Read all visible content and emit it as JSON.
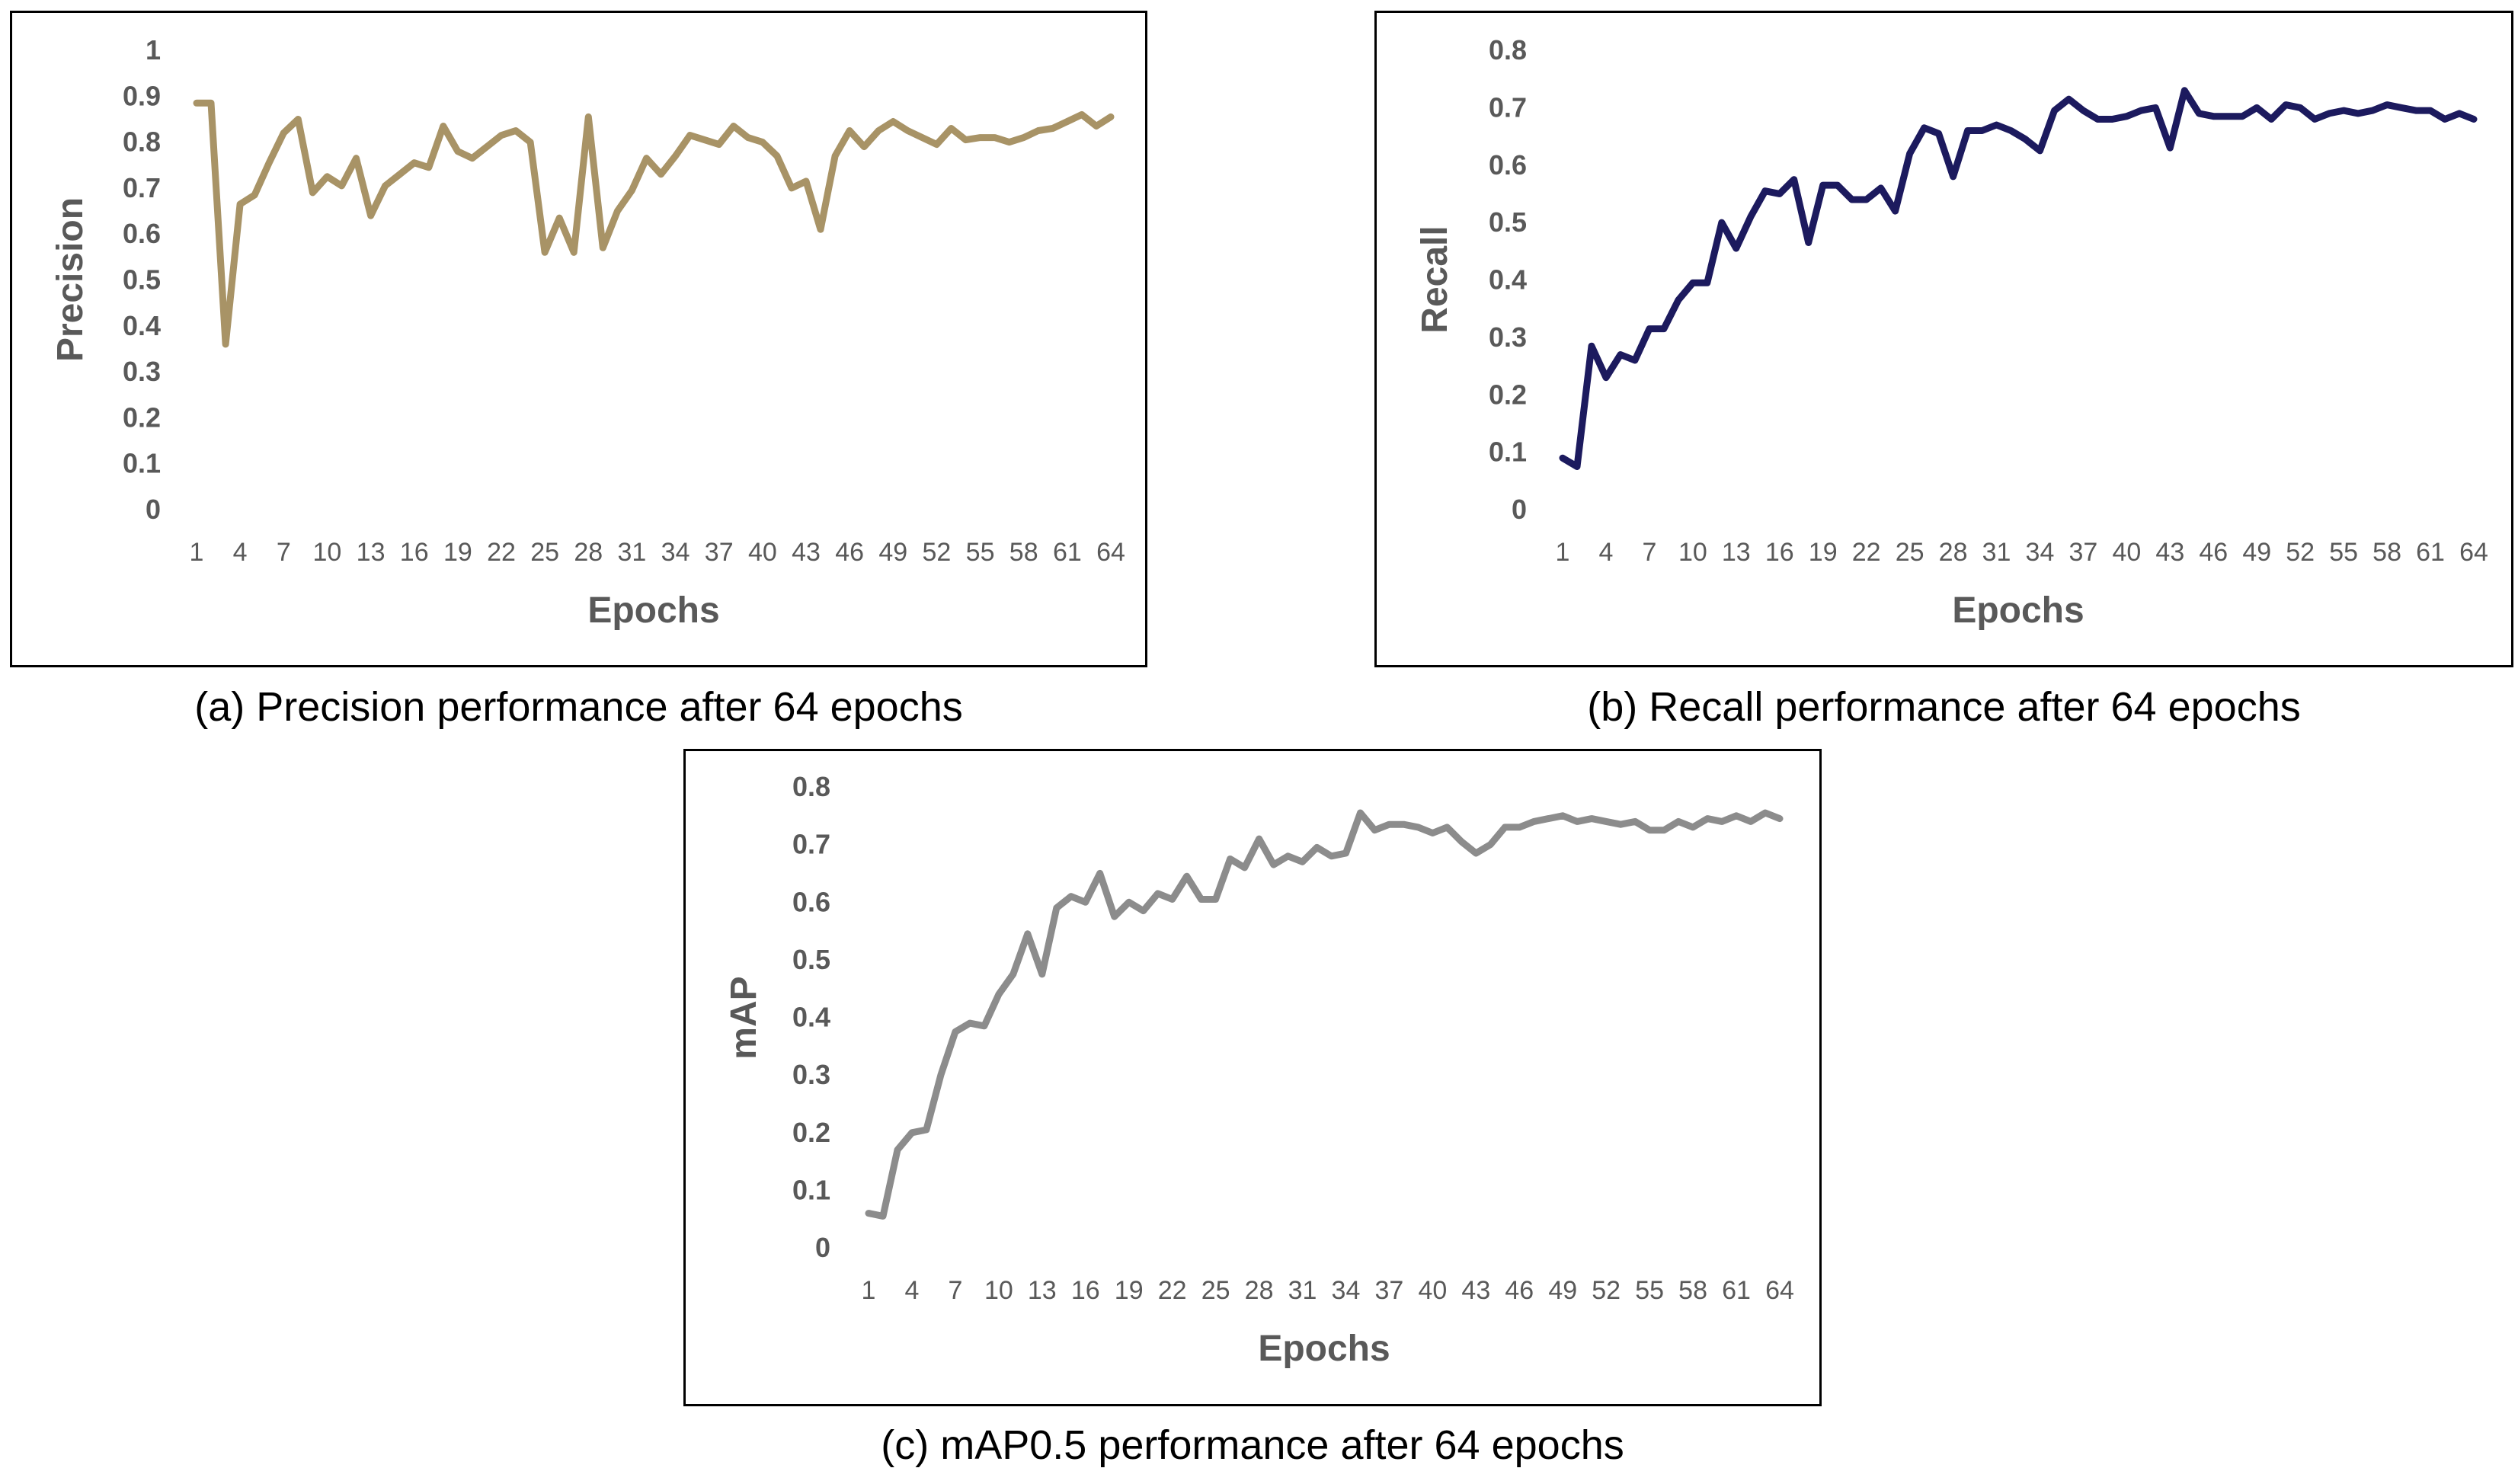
{
  "chart_data": [
    {
      "type": "line",
      "id": "precision",
      "title": "",
      "xlabel": "Epochs",
      "ylabel": "Precision",
      "ylim": [
        0,
        1
      ],
      "yticks": [
        "0",
        "0.1",
        "0.2",
        "0.3",
        "0.4",
        "0.5",
        "0.6",
        "0.7",
        "0.8",
        "0.9",
        "1"
      ],
      "xtick_labels": [
        "1",
        "4",
        "7",
        "10",
        "13",
        "16",
        "19",
        "22",
        "25",
        "28",
        "31",
        "34",
        "37",
        "40",
        "43",
        "46",
        "49",
        "52",
        "55",
        "58",
        "61",
        "64"
      ],
      "color": "#a89366",
      "caption": "(a) Precision performance after 64 epochs",
      "x": [
        1,
        2,
        3,
        4,
        5,
        6,
        7,
        8,
        9,
        10,
        11,
        12,
        13,
        14,
        15,
        16,
        17,
        18,
        19,
        20,
        21,
        22,
        23,
        24,
        25,
        26,
        27,
        28,
        29,
        30,
        31,
        32,
        33,
        34,
        35,
        36,
        37,
        38,
        39,
        40,
        41,
        42,
        43,
        44,
        45,
        46,
        47,
        48,
        49,
        50,
        51,
        52,
        53,
        54,
        55,
        56,
        57,
        58,
        59,
        60,
        61,
        62,
        63,
        64
      ],
      "values": [
        0.885,
        0.885,
        0.36,
        0.665,
        0.685,
        0.755,
        0.82,
        0.85,
        0.69,
        0.725,
        0.705,
        0.765,
        0.64,
        0.705,
        0.73,
        0.755,
        0.745,
        0.835,
        0.78,
        0.765,
        0.79,
        0.815,
        0.825,
        0.8,
        0.56,
        0.635,
        0.56,
        0.855,
        0.57,
        0.65,
        0.695,
        0.765,
        0.73,
        0.77,
        0.815,
        0.805,
        0.795,
        0.835,
        0.81,
        0.8,
        0.77,
        0.7,
        0.715,
        0.61,
        0.77,
        0.825,
        0.79,
        0.825,
        0.845,
        0.825,
        0.81,
        0.795,
        0.83,
        0.805,
        0.81,
        0.81,
        0.8,
        0.81,
        0.825,
        0.83,
        0.845,
        0.86,
        0.835,
        0.855
      ]
    },
    {
      "type": "line",
      "id": "recall",
      "title": "",
      "xlabel": "Epochs",
      "ylabel": "Recall",
      "ylim": [
        0,
        0.8
      ],
      "yticks": [
        "0",
        "0.1",
        "0.2",
        "0.3",
        "0.4",
        "0.5",
        "0.6",
        "0.7",
        "0.8"
      ],
      "xtick_labels": [
        "1",
        "4",
        "7",
        "10",
        "13",
        "16",
        "19",
        "22",
        "25",
        "28",
        "31",
        "34",
        "37",
        "40",
        "43",
        "46",
        "49",
        "52",
        "55",
        "58",
        "61",
        "64"
      ],
      "color": "#1c1a5e",
      "caption": "(b) Recall performance after 64 epochs",
      "x": [
        1,
        2,
        3,
        4,
        5,
        6,
        7,
        8,
        9,
        10,
        11,
        12,
        13,
        14,
        15,
        16,
        17,
        18,
        19,
        20,
        21,
        22,
        23,
        24,
        25,
        26,
        27,
        28,
        29,
        30,
        31,
        32,
        33,
        34,
        35,
        36,
        37,
        38,
        39,
        40,
        41,
        42,
        43,
        44,
        45,
        46,
        47,
        48,
        49,
        50,
        51,
        52,
        53,
        54,
        55,
        56,
        57,
        58,
        59,
        60,
        61,
        62,
        63,
        64
      ],
      "values": [
        0.09,
        0.075,
        0.285,
        0.23,
        0.27,
        0.26,
        0.315,
        0.315,
        0.365,
        0.395,
        0.395,
        0.5,
        0.455,
        0.51,
        0.555,
        0.55,
        0.575,
        0.465,
        0.565,
        0.565,
        0.54,
        0.54,
        0.56,
        0.52,
        0.62,
        0.665,
        0.655,
        0.58,
        0.66,
        0.66,
        0.67,
        0.66,
        0.645,
        0.625,
        0.695,
        0.715,
        0.695,
        0.68,
        0.68,
        0.685,
        0.695,
        0.7,
        0.63,
        0.73,
        0.69,
        0.685,
        0.685,
        0.685,
        0.7,
        0.68,
        0.705,
        0.7,
        0.68,
        0.69,
        0.695,
        0.69,
        0.695,
        0.705,
        0.7,
        0.695,
        0.695,
        0.68,
        0.69,
        0.68
      ]
    },
    {
      "type": "line",
      "id": "map",
      "title": "",
      "xlabel": "Epochs",
      "ylabel": "mAP",
      "ylim": [
        0,
        0.8
      ],
      "yticks": [
        "0",
        "0.1",
        "0.2",
        "0.3",
        "0.4",
        "0.5",
        "0.6",
        "0.7",
        "0.8"
      ],
      "xtick_labels": [
        "1",
        "4",
        "7",
        "10",
        "13",
        "16",
        "19",
        "22",
        "25",
        "28",
        "31",
        "34",
        "37",
        "40",
        "43",
        "46",
        "49",
        "52",
        "55",
        "58",
        "61",
        "64"
      ],
      "color": "#8c8c8c",
      "caption": "(c) mAP0.5 performance after 64 epochs",
      "x": [
        1,
        2,
        3,
        4,
        5,
        6,
        7,
        8,
        9,
        10,
        11,
        12,
        13,
        14,
        15,
        16,
        17,
        18,
        19,
        20,
        21,
        22,
        23,
        24,
        25,
        26,
        27,
        28,
        29,
        30,
        31,
        32,
        33,
        34,
        35,
        36,
        37,
        38,
        39,
        40,
        41,
        42,
        43,
        44,
        45,
        46,
        47,
        48,
        49,
        50,
        51,
        52,
        53,
        54,
        55,
        56,
        57,
        58,
        59,
        60,
        61,
        62,
        63,
        64
      ],
      "values": [
        0.06,
        0.055,
        0.17,
        0.2,
        0.205,
        0.3,
        0.375,
        0.39,
        0.385,
        0.44,
        0.475,
        0.545,
        0.475,
        0.59,
        0.61,
        0.6,
        0.65,
        0.575,
        0.6,
        0.585,
        0.615,
        0.605,
        0.645,
        0.605,
        0.605,
        0.675,
        0.66,
        0.71,
        0.665,
        0.68,
        0.67,
        0.695,
        0.68,
        0.685,
        0.755,
        0.725,
        0.735,
        0.735,
        0.73,
        0.72,
        0.73,
        0.705,
        0.685,
        0.7,
        0.73,
        0.73,
        0.74,
        0.745,
        0.75,
        0.74,
        0.745,
        0.74,
        0.735,
        0.74,
        0.725,
        0.725,
        0.74,
        0.73,
        0.745,
        0.74,
        0.75,
        0.74,
        0.755,
        0.745
      ]
    }
  ]
}
